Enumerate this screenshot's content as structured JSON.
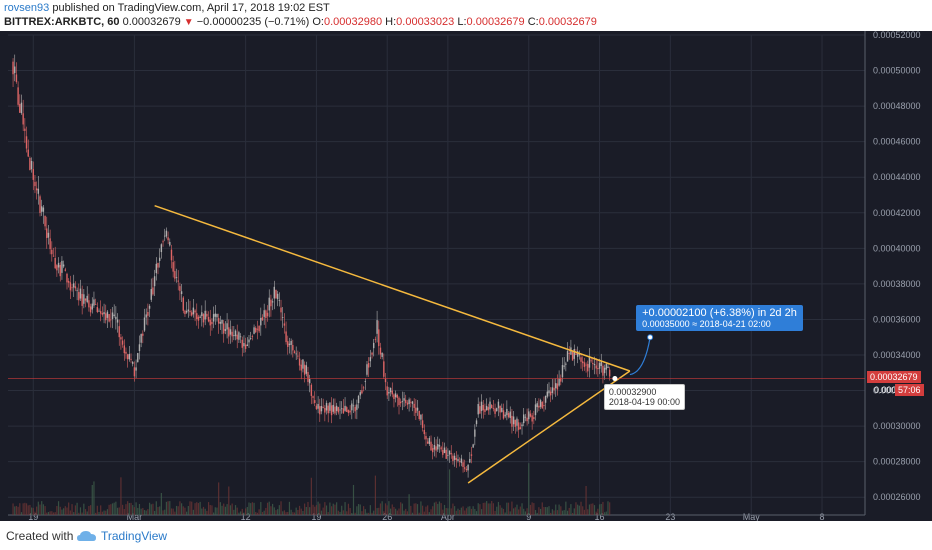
{
  "header": {
    "author": "rovsen93",
    "published_text": "published on TradingView.com, April 17, 2018 19:02 EST",
    "symbol": "BITTREX:ARKBTC, 60",
    "last": "0.00032679",
    "change": "−0.00000235 (−0.71%)",
    "open_label": "O:",
    "open": "0.00032980",
    "high_label": "H:",
    "high": "0.00033023",
    "low_label": "L:",
    "low": "0.00032679",
    "close_label": "C:",
    "close": "0.00032679"
  },
  "footer": {
    "created_with": "Created with",
    "brand": "TradingView"
  },
  "projection": {
    "line1": "+0.00002100 (+6.38%) in 2d 2h",
    "line2_price": "0.00035000",
    "line2_date": "2018-04-21  02:00"
  },
  "tooltip": {
    "price": "0.00032900",
    "date": "2018-04-19 00:00"
  },
  "price_tags": {
    "current": "0.00032679",
    "timer_price": "0.000",
    "timer": "57:06"
  },
  "colors": {
    "background": "#1a1c27",
    "up_candle": "#b0b0b0",
    "down_candle": "#e06666",
    "trendline": "#f5b93e",
    "current_price_line": "#d33d3d",
    "projection": "#2f7ed8"
  },
  "chart_data": {
    "type": "candlestick",
    "title": "BITTREX:ARKBTC, 60",
    "y_axis": {
      "min": 0.00025,
      "max": 0.00052,
      "ticks": [
        "0.00026000",
        "0.00028000",
        "0.00030000",
        "0.00032000",
        "0.00034000",
        "0.00036000",
        "0.00038000",
        "0.00040000",
        "0.00042000",
        "0.00044000",
        "0.00046000",
        "0.00048000",
        "0.00050000",
        "0.00052000"
      ]
    },
    "x_axis": {
      "ticks": [
        "19",
        "Mar",
        "12",
        "19",
        "26",
        "Apr",
        "9",
        "16",
        "23",
        "May",
        "8"
      ]
    },
    "grid": true,
    "price_anchors": [
      {
        "date": "2018-02-17",
        "price": 0.000505
      },
      {
        "date": "2018-02-18",
        "price": 0.00047
      },
      {
        "date": "2018-02-19",
        "price": 0.00044
      },
      {
        "date": "2018-02-21",
        "price": 0.000395
      },
      {
        "date": "2018-02-24",
        "price": 0.00037
      },
      {
        "date": "2018-02-27",
        "price": 0.00036
      },
      {
        "date": "2018-03-01",
        "price": 0.00033
      },
      {
        "date": "2018-03-04",
        "price": 0.00041
      },
      {
        "date": "2018-03-06",
        "price": 0.000365
      },
      {
        "date": "2018-03-09",
        "price": 0.00036
      },
      {
        "date": "2018-03-12",
        "price": 0.000345
      },
      {
        "date": "2018-03-15",
        "price": 0.000375
      },
      {
        "date": "2018-03-16",
        "price": 0.00035
      },
      {
        "date": "2018-03-18",
        "price": 0.00033
      },
      {
        "date": "2018-03-19",
        "price": 0.00031
      },
      {
        "date": "2018-03-20",
        "price": 0.00031
      },
      {
        "date": "2018-03-23",
        "price": 0.00031
      },
      {
        "date": "2018-03-25",
        "price": 0.000355
      },
      {
        "date": "2018-03-26",
        "price": 0.00032
      },
      {
        "date": "2018-03-29",
        "price": 0.00031
      },
      {
        "date": "2018-03-30",
        "price": 0.00029
      },
      {
        "date": "2018-04-01",
        "price": 0.000285
      },
      {
        "date": "2018-04-03",
        "price": 0.000275
      },
      {
        "date": "2018-04-04",
        "price": 0.00031
      },
      {
        "date": "2018-04-06",
        "price": 0.00031
      },
      {
        "date": "2018-04-08",
        "price": 0.0003
      },
      {
        "date": "2018-04-10",
        "price": 0.00031
      },
      {
        "date": "2018-04-12",
        "price": 0.000325
      },
      {
        "date": "2018-04-13",
        "price": 0.00034
      },
      {
        "date": "2018-04-15",
        "price": 0.000335
      },
      {
        "date": "2018-04-17",
        "price": 0.00033
      }
    ],
    "trendlines": [
      {
        "from": {
          "date": "2018-03-03",
          "price": 0.000424
        },
        "to": {
          "date": "2018-04-19",
          "price": 0.000331
        }
      },
      {
        "from": {
          "date": "2018-04-03",
          "price": 0.000268
        },
        "to": {
          "date": "2018-04-19",
          "price": 0.000331
        }
      }
    ],
    "projection": {
      "from": {
        "date": "2018-04-19",
        "price": 0.000329
      },
      "to": {
        "date": "2018-04-21",
        "price": 0.00035
      }
    },
    "current_price": 0.00032679
  }
}
